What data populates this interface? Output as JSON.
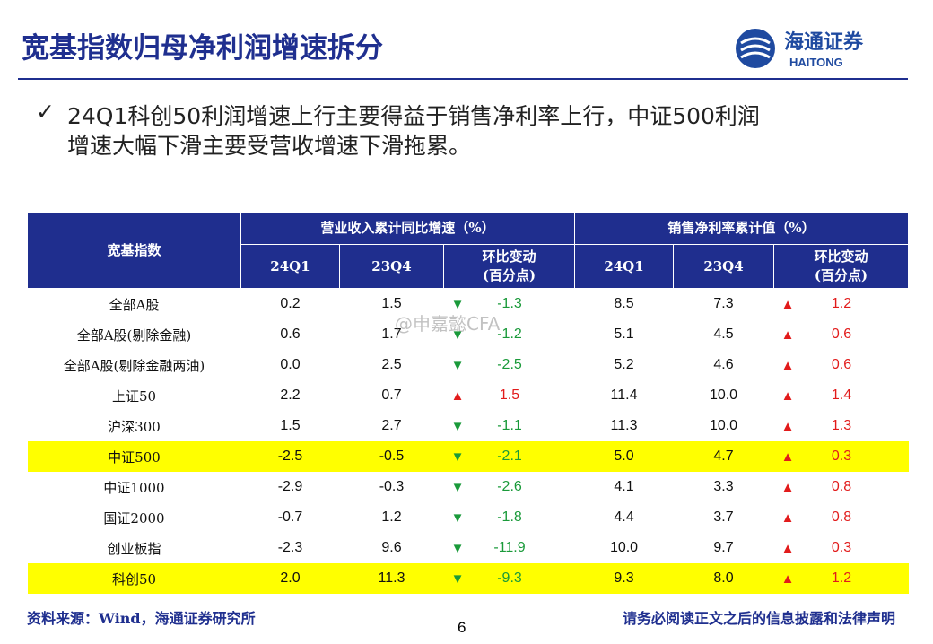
{
  "header": {
    "title": "宽基指数归母净利润增速拆分",
    "logo_cn": "海通证券",
    "logo_en": "HAITONG"
  },
  "bullet": {
    "mark": "✓",
    "lines": [
      "24Q1科创50利润增速上行主要得益于销售净利率上行，中证500利润",
      "增速大幅下滑主要受营收增速下滑拖累。"
    ]
  },
  "table": {
    "corner": "宽基指数",
    "groups": [
      "营业收入累计同比增速（%）",
      "销售净利率累计值（%）"
    ],
    "columns": [
      "24Q1",
      "23Q4",
      "环比变动\n(百分点)",
      "24Q1",
      "23Q4",
      "环比变动\n(百分点)"
    ],
    "highlight_rows": [
      5,
      9
    ],
    "rows": [
      [
        "全部A股",
        "0.2",
        "1.5",
        "▼",
        "-1.3",
        "8.5",
        "7.3",
        "▲",
        "1.2"
      ],
      [
        "全部A股(剔除金融)",
        "0.6",
        "1.7",
        "▼",
        "-1.2",
        "5.1",
        "4.5",
        "▲",
        "0.6"
      ],
      [
        "全部A股(剔除金融两油)",
        "0.0",
        "2.5",
        "▼",
        "-2.5",
        "5.2",
        "4.6",
        "▲",
        "0.6"
      ],
      [
        "上证50",
        "2.2",
        "0.7",
        "▲",
        "1.5",
        "11.4",
        "10.0",
        "▲",
        "1.4"
      ],
      [
        "沪深300",
        "1.5",
        "2.7",
        "▼",
        "-1.1",
        "11.3",
        "10.0",
        "▲",
        "1.3"
      ],
      [
        "中证500",
        "-2.5",
        "-0.5",
        "▼",
        "-2.1",
        "5.0",
        "4.7",
        "▲",
        "0.3"
      ],
      [
        "中证1000",
        "-2.9",
        "-0.3",
        "▼",
        "-2.6",
        "4.1",
        "3.3",
        "▲",
        "0.8"
      ],
      [
        "国证2000",
        "-0.7",
        "1.2",
        "▼",
        "-1.8",
        "4.4",
        "3.7",
        "▲",
        "0.8"
      ],
      [
        "创业板指",
        "-2.3",
        "9.6",
        "▼",
        "-11.9",
        "10.0",
        "9.7",
        "▲",
        "0.3"
      ],
      [
        "科创50",
        "2.0",
        "11.3",
        "▼",
        "-9.3",
        "9.3",
        "8.0",
        "▲",
        "1.2"
      ]
    ]
  },
  "watermark": "@申嘉懿CFA",
  "footer": {
    "source": "资料来源：Wind，海通证券研究所",
    "page": "6",
    "disclaimer": "请务必阅读正文之后的信息披露和法律声明"
  }
}
